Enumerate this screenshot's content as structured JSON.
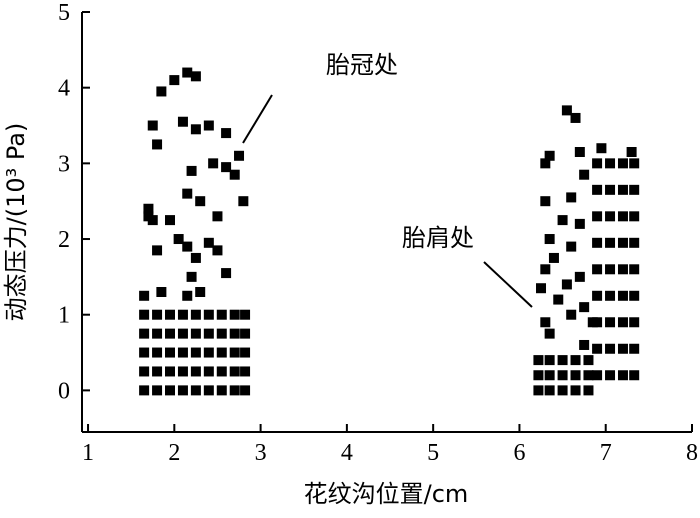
{
  "chart_data": {
    "type": "scatter",
    "xlabel": "花纹沟位置/cm",
    "ylabel": "动态压力/(10³ Pa)",
    "annotations": [
      "胎冠处",
      "胎肩处"
    ],
    "color": "#000000",
    "xlim": [
      0.93,
      8
    ],
    "xticks": [
      1,
      2,
      3,
      4,
      5,
      6,
      7,
      8
    ],
    "ylim": [
      -0.55,
      5
    ],
    "yticks": [
      0,
      1,
      2,
      3,
      4,
      5
    ],
    "x": [
      1.65,
      1.8,
      1.95,
      2.1,
      2.25,
      2.4,
      2.55,
      2.7,
      2.82,
      1.65,
      1.8,
      1.95,
      2.1,
      2.25,
      2.4,
      2.55,
      2.7,
      2.82,
      1.65,
      1.8,
      1.95,
      2.1,
      2.25,
      2.4,
      2.55,
      2.7,
      2.82,
      1.65,
      1.8,
      1.95,
      2.1,
      2.25,
      2.4,
      2.55,
      2.7,
      2.82,
      1.65,
      1.8,
      1.95,
      2.1,
      2.25,
      2.4,
      2.55,
      2.7,
      2.82,
      2.15,
      2.2,
      2.25,
      2.15,
      2.3,
      1.75,
      1.8,
      1.85,
      2.0,
      2.15,
      2.25,
      2.1,
      2.25,
      2.4,
      2.6,
      2.2,
      2.45,
      2.6,
      2.75,
      2.7,
      1.7,
      1.75,
      1.8,
      1.65,
      2.15,
      2.3,
      2.5,
      2.8,
      2.4,
      2.5,
      2.6,
      1.95,
      2.05,
      1.7,
      1.85,
      6.22,
      6.35,
      6.5,
      6.65,
      6.8,
      6.22,
      6.35,
      6.5,
      6.65,
      6.8,
      6.22,
      6.35,
      6.5,
      6.65,
      6.8,
      6.9,
      7.05,
      7.2,
      7.33,
      6.9,
      7.05,
      7.2,
      7.33,
      6.9,
      7.05,
      7.2,
      7.33,
      6.9,
      7.05,
      7.2,
      7.33,
      6.9,
      7.05,
      7.2,
      7.33,
      6.9,
      7.05,
      7.2,
      7.33,
      6.9,
      7.05,
      7.2,
      7.33,
      6.9,
      7.05,
      7.2,
      7.33,
      6.9,
      7.05,
      7.2,
      7.33,
      6.95,
      7.3,
      6.85,
      6.75,
      6.55,
      6.65,
      6.35,
      6.3,
      6.7,
      6.3,
      6.35,
      6.3,
      6.25,
      6.4,
      6.5,
      6.6,
      6.75,
      6.7,
      6.6,
      6.55,
      6.45,
      6.3,
      6.35,
      6.6,
      6.75,
      6.7
    ],
    "values": [
      0,
      0,
      0,
      0,
      0,
      0,
      0,
      0,
      0,
      0.25,
      0.25,
      0.25,
      0.25,
      0.25,
      0.25,
      0.25,
      0.25,
      0.25,
      0.5,
      0.5,
      0.5,
      0.5,
      0.5,
      0.5,
      0.5,
      0.5,
      0.5,
      0.75,
      0.75,
      0.75,
      0.75,
      0.75,
      0.75,
      0.75,
      0.75,
      0.75,
      1.0,
      1.0,
      1.0,
      1.0,
      1.0,
      1.0,
      1.0,
      1.0,
      1.0,
      1.25,
      1.5,
      1.75,
      1.9,
      1.3,
      3.5,
      3.25,
      3.95,
      4.1,
      4.2,
      4.15,
      3.55,
      3.45,
      3.5,
      3.4,
      2.9,
      3.0,
      2.95,
      3.1,
      2.85,
      2.4,
      2.25,
      1.85,
      1.25,
      2.6,
      2.5,
      2.3,
      2.5,
      1.95,
      1.85,
      1.55,
      2.25,
      2.0,
      2.3,
      1.3,
      0,
      0,
      0,
      0,
      0,
      0.2,
      0.2,
      0.2,
      0.2,
      0.2,
      0.4,
      0.4,
      0.4,
      0.4,
      0.4,
      0.2,
      0.2,
      0.2,
      0.2,
      0.55,
      0.55,
      0.55,
      0.55,
      0.9,
      0.9,
      0.9,
      0.9,
      1.25,
      1.25,
      1.25,
      1.25,
      1.6,
      1.6,
      1.6,
      1.6,
      1.95,
      1.95,
      1.95,
      1.95,
      2.3,
      2.3,
      2.3,
      2.3,
      2.65,
      2.65,
      2.65,
      2.65,
      3.0,
      3.0,
      3.0,
      3.0,
      3.2,
      3.15,
      0.9,
      0.6,
      3.7,
      3.6,
      3.1,
      3.0,
      3.15,
      2.5,
      2.0,
      1.6,
      1.35,
      1.75,
      2.25,
      2.55,
      2.85,
      2.2,
      1.9,
      1.4,
      1.2,
      0.9,
      0.75,
      1.0,
      1.1,
      1.5
    ]
  }
}
